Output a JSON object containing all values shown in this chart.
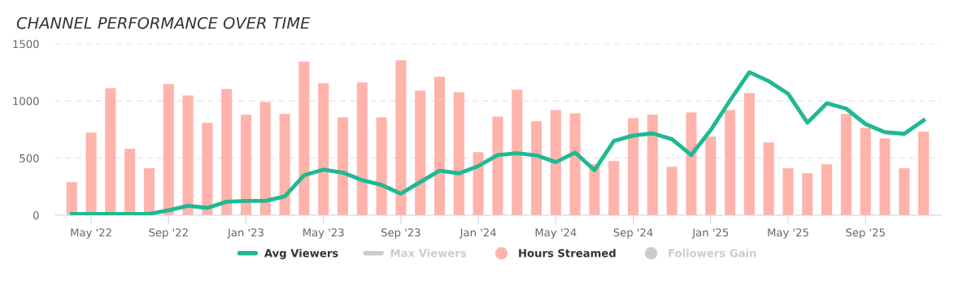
{
  "chart_data": {
    "type": "bar",
    "title": "CHANNEL PERFORMANCE OVER TIME",
    "categories": [
      null,
      "May '22",
      null,
      null,
      null,
      "Sep '22",
      null,
      null,
      null,
      "Jan '23",
      null,
      null,
      null,
      "May '23",
      null,
      null,
      null,
      "Sep '23",
      null,
      null,
      null,
      "Jan '24",
      null,
      null,
      null,
      "May '24",
      null,
      null,
      null,
      "Sep '24",
      null,
      null,
      null,
      "Jan '25",
      null,
      null,
      null,
      "May '25",
      null,
      null,
      null,
      "Sep '25",
      null,
      null,
      null
    ],
    "series": [
      {
        "name": "Avg Viewers",
        "type": "line",
        "color": "#1fb993",
        "values": [
          12,
          12,
          12,
          12,
          12,
          43,
          83,
          64,
          118,
          125,
          125,
          165,
          350,
          399,
          373,
          307,
          265,
          189,
          290,
          390,
          366,
          430,
          527,
          543,
          524,
          465,
          548,
          394,
          650,
          697,
          716,
          666,
          527,
          744,
          1004,
          1252,
          1174,
          1063,
          810,
          980,
          933,
          798,
          727,
          713,
          831
        ]
      },
      {
        "name": "Max Viewers",
        "type": "line",
        "color": "#cccccc",
        "values": [
          null,
          null,
          null,
          null,
          null,
          null,
          null,
          null,
          null,
          null,
          null,
          null,
          null,
          null,
          null,
          null,
          null,
          null,
          null,
          null,
          null,
          null,
          null,
          null,
          null,
          null,
          null,
          null,
          null,
          null,
          null,
          null,
          null,
          null,
          null,
          null,
          null,
          null,
          null,
          null,
          null,
          null,
          null,
          null,
          null
        ]
      },
      {
        "name": "Hours Streamed",
        "color": "#ffb3ab",
        "values": [
          290,
          723,
          1113,
          581,
          411,
          1148,
          1049,
          808,
          1105,
          879,
          992,
          886,
          1346,
          1155,
          857,
          1162,
          857,
          1356,
          1091,
          1212,
          1077,
          553,
          864,
          1098,
          822,
          921,
          893,
          446,
          475,
          850,
          879,
          425,
          900,
          687,
          921,
          1070,
          638,
          411,
          368,
          446,
          886,
          765,
          673,
          411,
          730
        ]
      },
      {
        "name": "Followers Gain",
        "type": "bar",
        "color": "#cccccc",
        "values": [
          null,
          null,
          null,
          null,
          null,
          null,
          null,
          null,
          null,
          null,
          null,
          null,
          null,
          null,
          null,
          null,
          null,
          null,
          null,
          null,
          null,
          null,
          null,
          null,
          null,
          null,
          null,
          null,
          null,
          null,
          null,
          null,
          null,
          null,
          null,
          null,
          null,
          null,
          null,
          null,
          null,
          null,
          null,
          null,
          null
        ]
      }
    ],
    "ylim": [
      0,
      1500
    ],
    "yticks": [
      0,
      500,
      1000,
      1500
    ],
    "grid": "y",
    "legend": "bottom"
  }
}
